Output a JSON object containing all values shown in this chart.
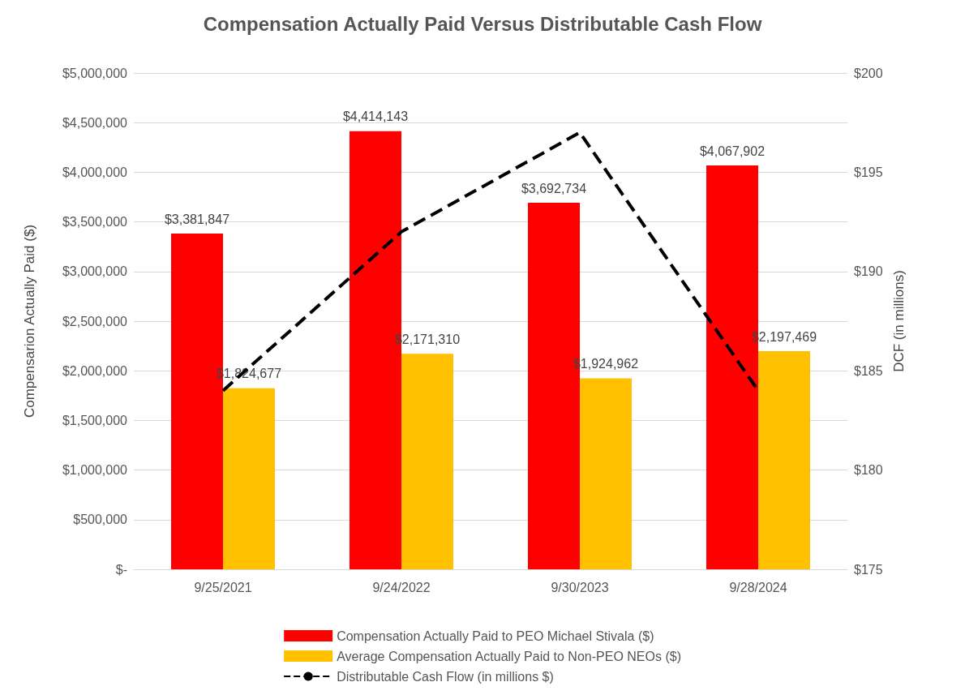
{
  "chart_data": {
    "type": "bar",
    "title": "Compensation Actually Paid Versus Distributable Cash Flow",
    "ylabel": "Compensarion Actually Paid ($)",
    "y2label": "DCF (in millions)",
    "categories": [
      "9/25/2021",
      "9/24/2022",
      "9/30/2023",
      "9/28/2024"
    ],
    "series": [
      {
        "name": "Compensation Actually Paid to PEO Michael Stivala ($)",
        "color": "#ff0000",
        "values": [
          3381847,
          4414143,
          3692734,
          4067902
        ],
        "value_labels": [
          "$3,381,847",
          "$4,414,143",
          "$3,692,734",
          "$4,067,902"
        ]
      },
      {
        "name": "Average Compensation Actually Paid to Non-PEO NEOs ($)",
        "color": "#ffc000",
        "values": [
          1824677,
          2171310,
          1924962,
          2197469
        ],
        "value_labels": [
          "$1,824,677",
          "$2,171,310",
          "$1,924,962",
          "$2,197,469"
        ]
      },
      {
        "name": "Distributable Cash Flow (in millions $)",
        "type": "line",
        "axis": "y2",
        "color": "#000000",
        "line_style": "dashed",
        "marker": "none",
        "values": [
          184,
          192,
          197,
          184
        ]
      }
    ],
    "ylim": [
      0,
      5000000
    ],
    "yticks": [
      {
        "value": 0,
        "label": "$-"
      },
      {
        "value": 500000,
        "label": "$500,000"
      },
      {
        "value": 1000000,
        "label": "$1,000,000"
      },
      {
        "value": 1500000,
        "label": "$1,500,000"
      },
      {
        "value": 2000000,
        "label": "$2,000,000"
      },
      {
        "value": 2500000,
        "label": "$2,500,000"
      },
      {
        "value": 3000000,
        "label": "$3,000,000"
      },
      {
        "value": 3500000,
        "label": "$3,500,000"
      },
      {
        "value": 4000000,
        "label": "$4,000,000"
      },
      {
        "value": 4500000,
        "label": "$4,500,000"
      },
      {
        "value": 5000000,
        "label": "$5,000,000"
      }
    ],
    "y2lim": [
      175,
      200
    ],
    "y2ticks": [
      {
        "value": 175,
        "label": "$175"
      },
      {
        "value": 180,
        "label": "$180"
      },
      {
        "value": 185,
        "label": "$185"
      },
      {
        "value": 190,
        "label": "$190"
      },
      {
        "value": 195,
        "label": "$195"
      },
      {
        "value": 200,
        "label": "$200"
      }
    ],
    "grid": "y",
    "legend": "bottom"
  }
}
